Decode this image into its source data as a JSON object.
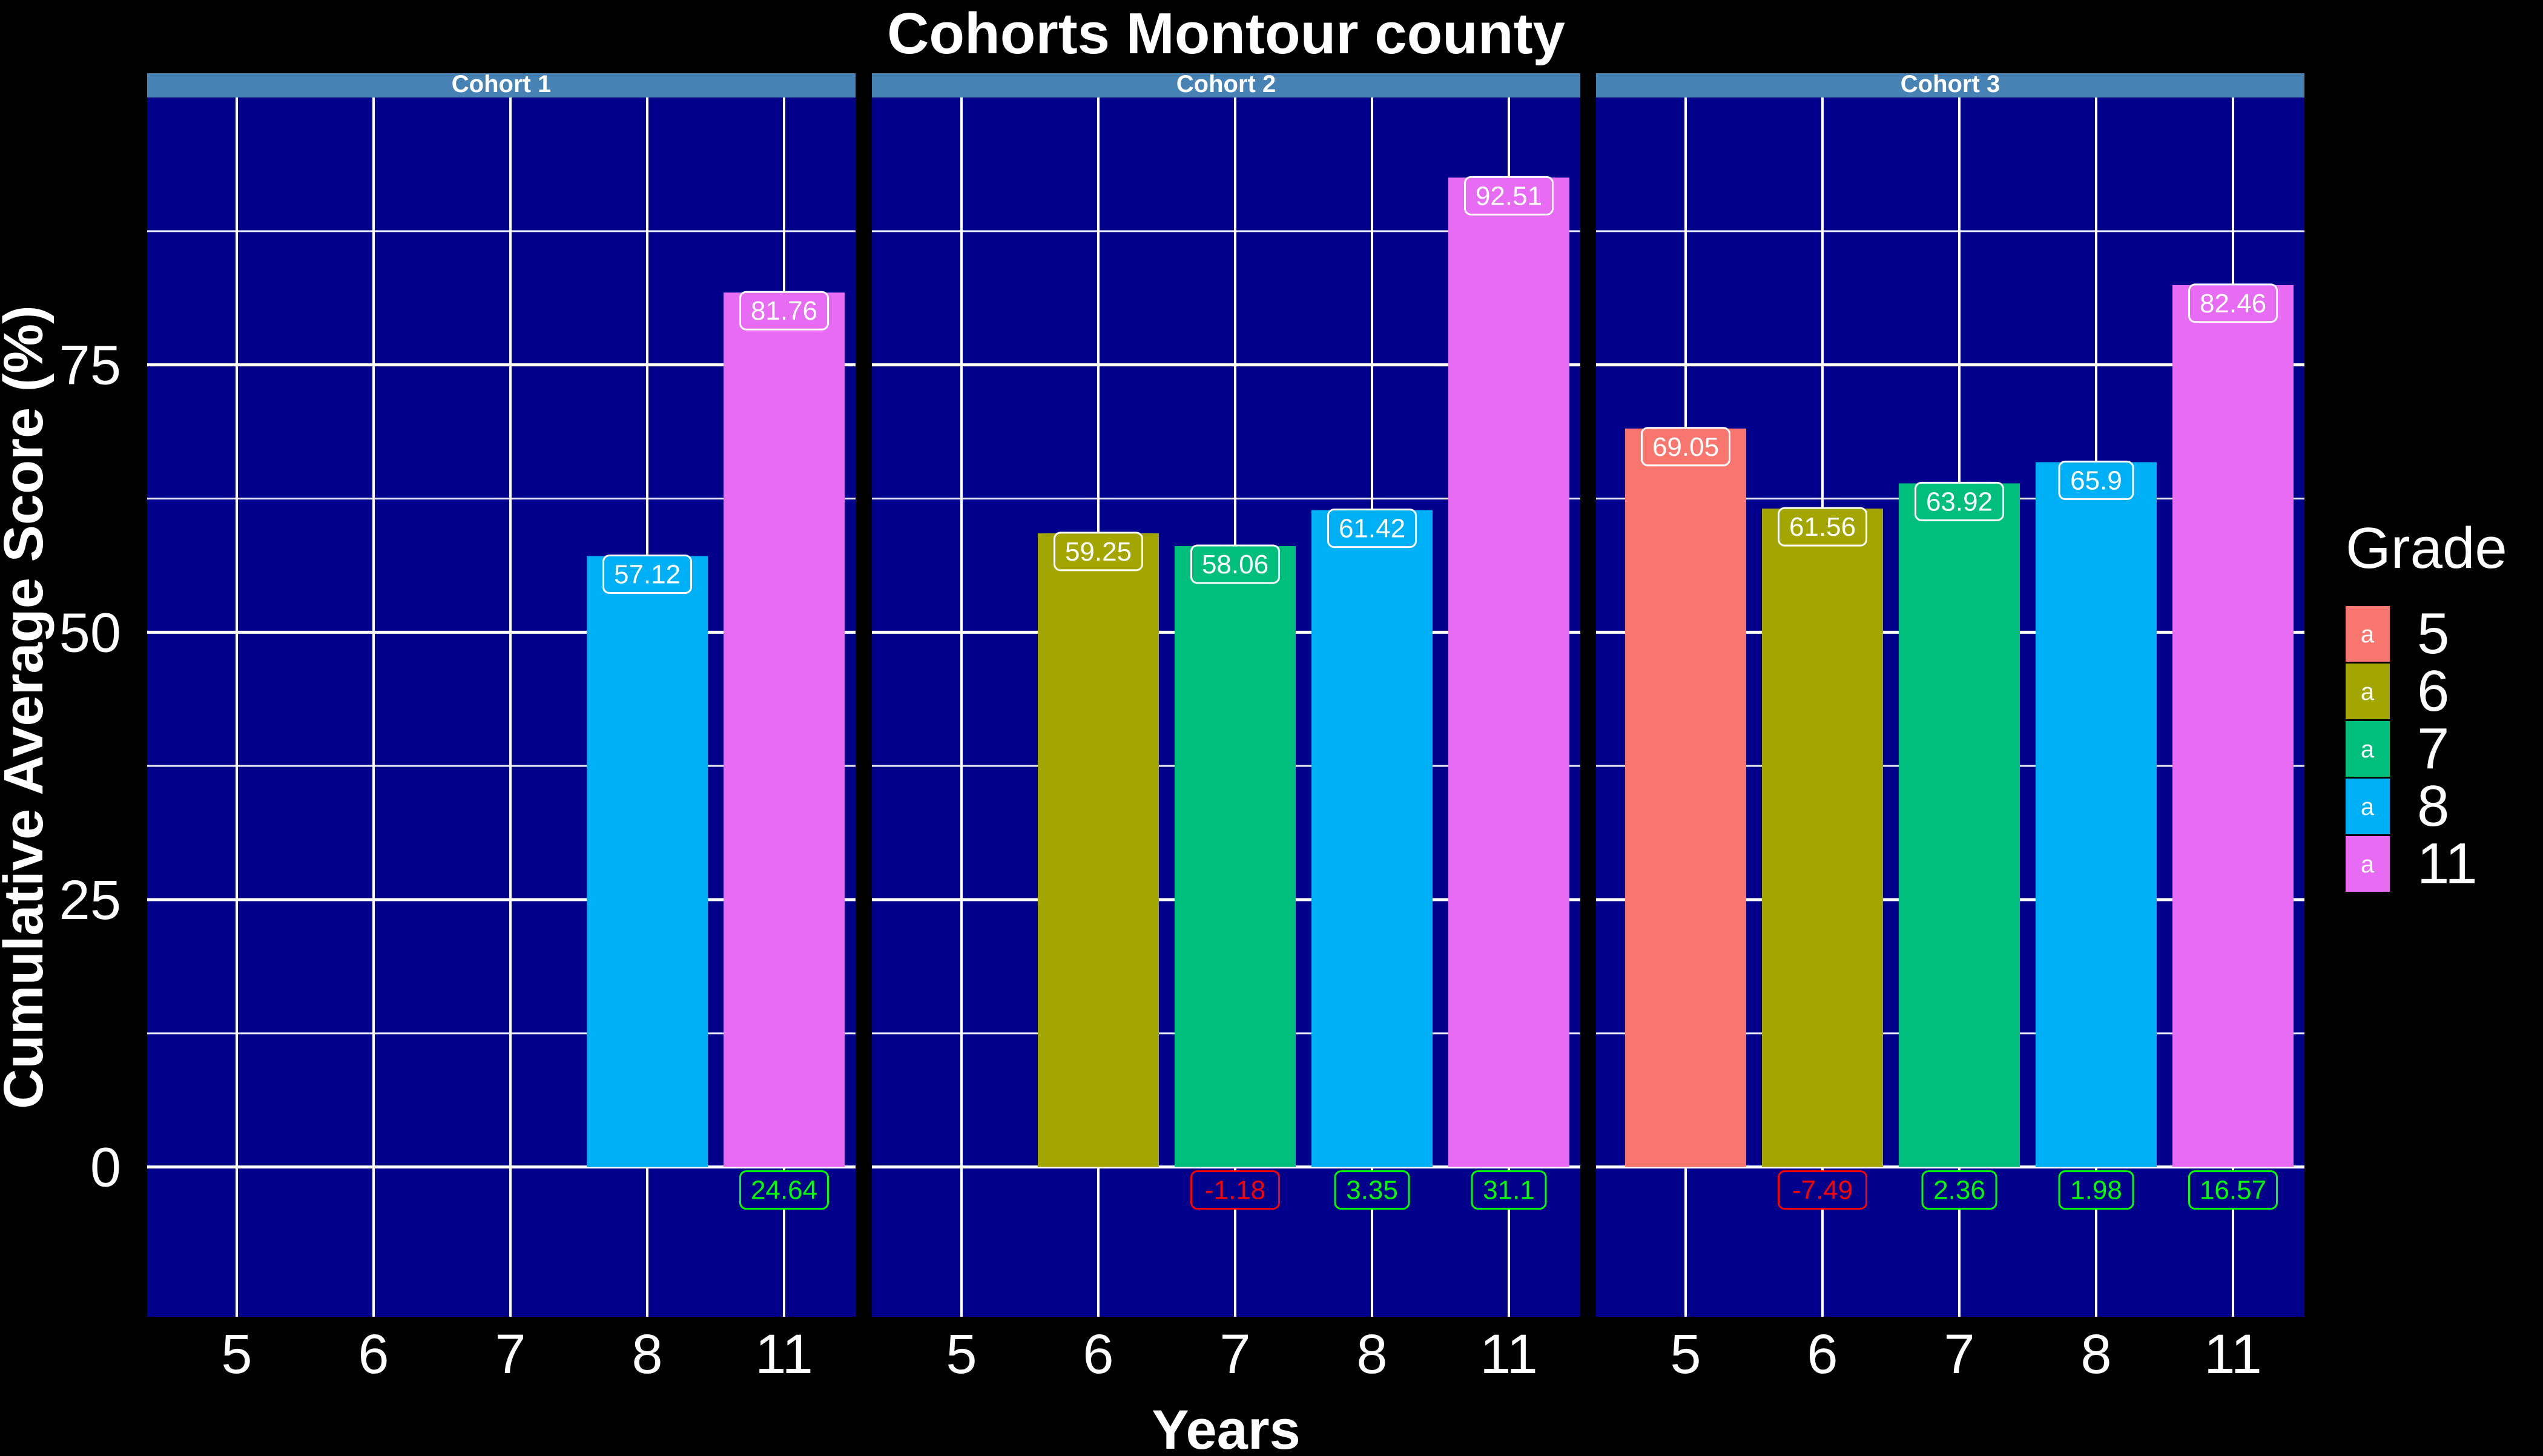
{
  "chart_data": {
    "type": "bar",
    "title": "Cohorts Montour county",
    "xlabel": "Years",
    "ylabel": "Cumulative Average Score (%)",
    "ylim": [
      -14,
      100
    ],
    "y_ticks": [
      0,
      25,
      50,
      75
    ],
    "x_categories": [
      "5",
      "6",
      "7",
      "8",
      "11"
    ],
    "grid": true,
    "legend": {
      "title": "Grade",
      "placement": "right",
      "glyph": "a",
      "entries": [
        {
          "label": "5",
          "color": "#F8766D"
        },
        {
          "label": "6",
          "color": "#A3A500"
        },
        {
          "label": "7",
          "color": "#00BF7D"
        },
        {
          "label": "8",
          "color": "#00B0F6"
        },
        {
          "label": "11",
          "color": "#E76BF3"
        }
      ]
    },
    "colors": {
      "background": "#000000",
      "panel": "#00008B",
      "strip": "#4682B4",
      "grid": "#FFFFFF",
      "text": "#FFFFFF",
      "positive_change": "#00FF00",
      "negative_change": "#FF0000"
    },
    "panels": [
      {
        "title": "Cohort 1",
        "bars": [
          {
            "category": "8",
            "value": 57.12,
            "label": "57.12"
          },
          {
            "category": "11",
            "value": 81.76,
            "label": "81.76",
            "change": 24.64,
            "change_label": "24.64"
          }
        ]
      },
      {
        "title": "Cohort 2",
        "bars": [
          {
            "category": "6",
            "value": 59.25,
            "label": "59.25"
          },
          {
            "category": "7",
            "value": 58.06,
            "label": "58.06",
            "change": -1.18,
            "change_label": "-1.18"
          },
          {
            "category": "8",
            "value": 61.42,
            "label": "61.42",
            "change": 3.35,
            "change_label": "3.35"
          },
          {
            "category": "11",
            "value": 92.51,
            "label": "92.51",
            "change": 31.1,
            "change_label": "31.1"
          }
        ]
      },
      {
        "title": "Cohort 3",
        "bars": [
          {
            "category": "5",
            "value": 69.05,
            "label": "69.05"
          },
          {
            "category": "6",
            "value": 61.56,
            "label": "61.56",
            "change": -7.49,
            "change_label": "-7.49"
          },
          {
            "category": "7",
            "value": 63.92,
            "label": "63.92",
            "change": 2.36,
            "change_label": "2.36"
          },
          {
            "category": "8",
            "value": 65.9,
            "label": "65.9",
            "change": 1.98,
            "change_label": "1.98"
          },
          {
            "category": "11",
            "value": 82.46,
            "label": "82.46",
            "change": 16.57,
            "change_label": "16.57"
          }
        ]
      }
    ]
  }
}
